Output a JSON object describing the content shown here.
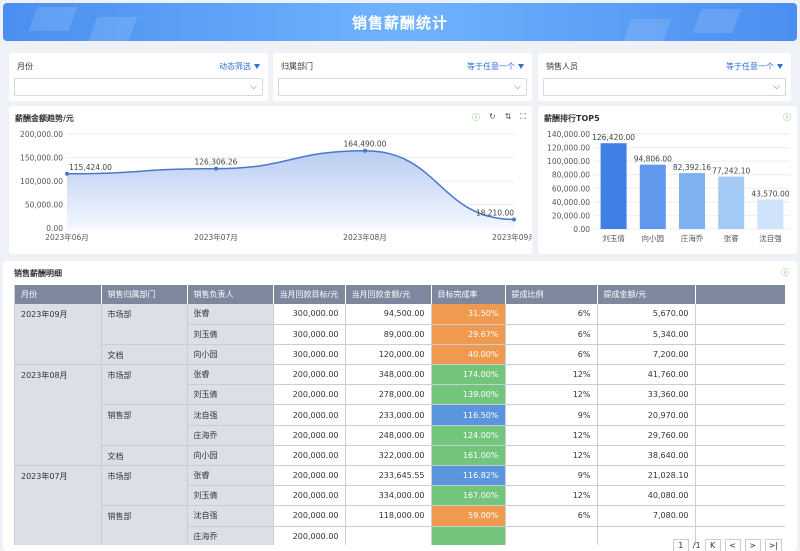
{
  "banner": {
    "title": "销售薪酬统计"
  },
  "filters": [
    {
      "label": "月份",
      "mode": "动态筛选"
    },
    {
      "label": "归属部门",
      "mode": "等于任意一个"
    },
    {
      "label": "销售人员",
      "mode": "等于任意一个"
    }
  ],
  "trend": {
    "title": "薪酬金额趋势/元",
    "chart_data": {
      "type": "area",
      "x": [
        "2023年06月",
        "2023年07月",
        "2023年08月",
        "2023年09月"
      ],
      "values": [
        115424.0,
        126306.26,
        164490.0,
        18210.0
      ],
      "labels": [
        "115,424.00",
        "126,306.26",
        "164,490.00",
        "18,210.00"
      ],
      "yticks": [
        "200,000.00",
        "150,000.00",
        "100,000.00",
        "50,000.00",
        "0.00"
      ],
      "ylim": [
        0,
        200000
      ],
      "color": "#4a78c8"
    }
  },
  "top5": {
    "title": "薪酬排行TOP5",
    "chart_data": {
      "type": "bar",
      "categories": [
        "刘玉倩",
        "向小园",
        "庄海乔",
        "张睿",
        "沈自强"
      ],
      "values": [
        126420.0,
        94806.0,
        82392.16,
        77242.1,
        43570.0
      ],
      "labels": [
        "126,420.00",
        "94,806.00",
        "82,392.16",
        "77,242.10",
        "43,570.00"
      ],
      "yticks": [
        "140,000.00",
        "120,000.00",
        "100,000.00",
        "80,000.00",
        "60,000.00",
        "40,000.00",
        "20,000.00",
        "0.00"
      ],
      "ylim": [
        0,
        140000
      ],
      "colors": [
        "#3f7fe6",
        "#5f98ec",
        "#7fb1f0",
        "#a3c9f5",
        "#cfe4fb"
      ]
    }
  },
  "detail": {
    "title": "销售薪酬明细",
    "headers": [
      "月份",
      "销售归属部门",
      "销售负责人",
      "当月回款目标/元",
      "当月回款金额/元",
      "目标完成率",
      "提成比例",
      "提成金额/元",
      ""
    ],
    "rows": [
      [
        "2023年09月",
        "市场部",
        "张睿",
        "300,000.00",
        "94,500.00",
        "31.50%",
        "6%",
        "5,670.00"
      ],
      [
        "",
        "",
        "刘玉倩",
        "300,000.00",
        "89,000.00",
        "29.67%",
        "6%",
        "5,340.00"
      ],
      [
        "",
        "文档",
        "向小园",
        "300,000.00",
        "120,000.00",
        "40.00%",
        "6%",
        "7,200.00"
      ],
      [
        "2023年08月",
        "市场部",
        "张睿",
        "200,000.00",
        "348,000.00",
        "174.00%",
        "12%",
        "41,760.00"
      ],
      [
        "",
        "",
        "刘玉倩",
        "200,000.00",
        "278,000.00",
        "139.00%",
        "12%",
        "33,360.00"
      ],
      [
        "",
        "销售部",
        "沈自强",
        "200,000.00",
        "233,000.00",
        "116.50%",
        "9%",
        "20,970.00"
      ],
      [
        "",
        "",
        "庄海乔",
        "200,000.00",
        "248,000.00",
        "124.00%",
        "12%",
        "29,760.00"
      ],
      [
        "",
        "文档",
        "向小园",
        "200,000.00",
        "322,000.00",
        "161.00%",
        "12%",
        "38,640.00"
      ],
      [
        "2023年07月",
        "市场部",
        "张睿",
        "200,000.00",
        "233,645.55",
        "116.82%",
        "9%",
        "21,028.10"
      ],
      [
        "",
        "",
        "刘玉倩",
        "200,000.00",
        "334,000.00",
        "167.00%",
        "12%",
        "40,080.00"
      ],
      [
        "",
        "销售部",
        "沈自强",
        "200,000.00",
        "118,000.00",
        "59.00%",
        "6%",
        "7,080.00"
      ],
      [
        "",
        "",
        "庄海乔",
        "200,000.00",
        "",
        "",
        "",
        ""
      ]
    ],
    "rate_colors": [
      "#ef9a4f",
      "#ef9a4f",
      "#ef9a4f",
      "#72c57a",
      "#72c57a",
      "#5b95de",
      "#72c57a",
      "#72c57a",
      "#5b95de",
      "#72c57a",
      "#ef9a4f",
      "#72c57a"
    ]
  },
  "pager": {
    "current": "1",
    "total": "/1",
    "first": "K",
    "prev": "<",
    "next": ">",
    "last": ">|"
  }
}
